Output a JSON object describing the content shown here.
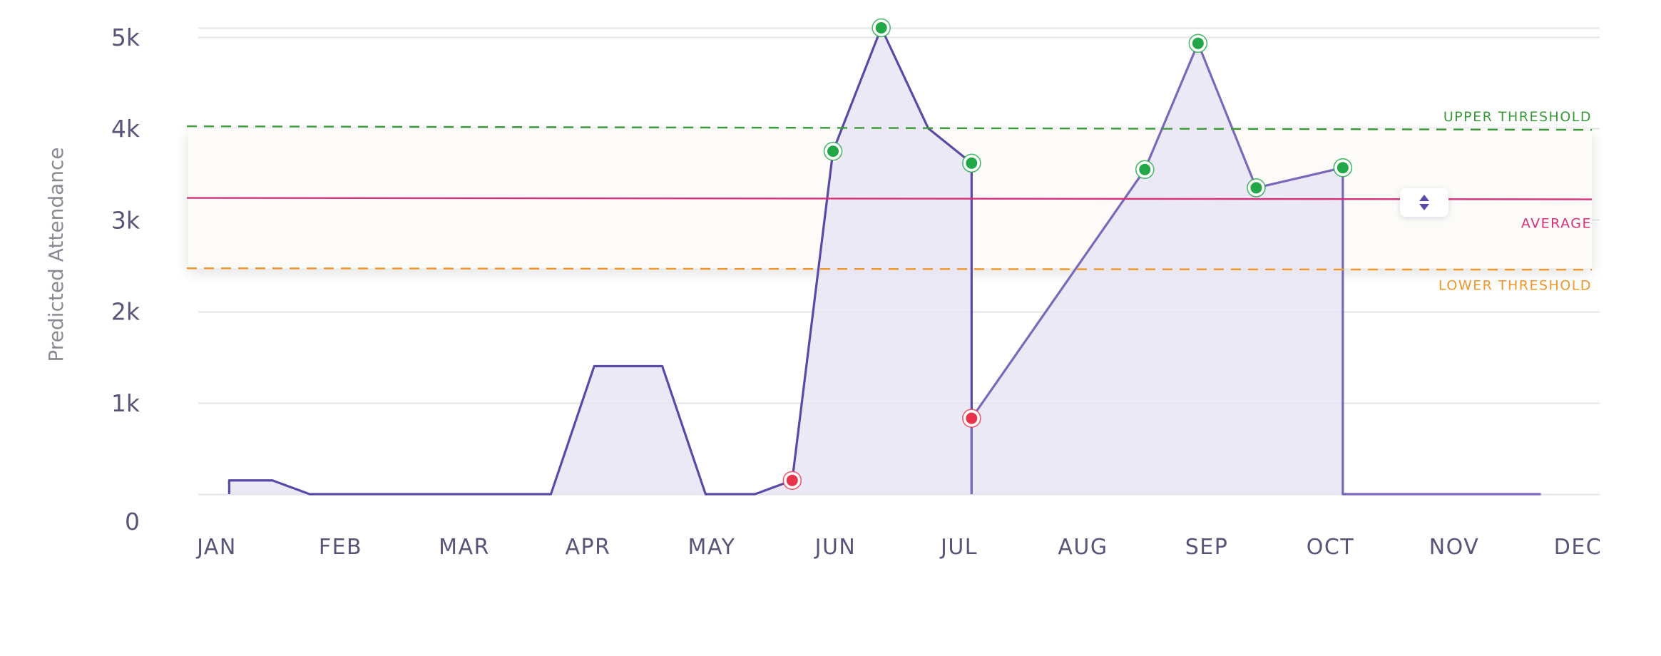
{
  "chart_data": {
    "type": "area",
    "ylabel": "Predicted Attendance",
    "xlabel": "",
    "title": "",
    "x_ticks": [
      "JAN",
      "FEB",
      "MAR",
      "APR",
      "MAY",
      "JUN",
      "JUL",
      "AUG",
      "SEP",
      "OCT",
      "NOV",
      "DEC"
    ],
    "y_ticks": [
      {
        "value": 0,
        "label": "0"
      },
      {
        "value": 1000,
        "label": "1k"
      },
      {
        "value": 2000,
        "label": "2k"
      },
      {
        "value": 3000,
        "label": "3k"
      },
      {
        "value": 4000,
        "label": "4k"
      },
      {
        "value": 5000,
        "label": "5k"
      }
    ],
    "ylim": [
      0,
      5100
    ],
    "xlim": [
      1,
      12.65
    ],
    "grid": true,
    "series": [
      {
        "values": [
          [
            1.1,
            0
          ],
          [
            1.1,
            150
          ],
          [
            1.45,
            150
          ],
          [
            1.75,
            0
          ],
          [
            3.7,
            0
          ],
          [
            4.05,
            1400
          ],
          [
            4.6,
            1400
          ],
          [
            4.95,
            0
          ],
          [
            5.35,
            0
          ],
          [
            5.65,
            150
          ],
          [
            5.98,
            3750
          ],
          [
            6.37,
            5100
          ],
          [
            6.75,
            4000
          ],
          [
            7.1,
            3620
          ],
          [
            7.1,
            0
          ]
        ]
      },
      {
        "values": [
          [
            7.1,
            0
          ],
          [
            7.1,
            830
          ],
          [
            8.5,
            3550
          ],
          [
            8.93,
            4930
          ],
          [
            9.4,
            3350
          ],
          [
            10.1,
            3570
          ],
          [
            10.1,
            0
          ],
          [
            11.7,
            0
          ]
        ]
      }
    ],
    "markers": [
      {
        "x": 5.65,
        "y": 150,
        "status": "low"
      },
      {
        "x": 5.98,
        "y": 3750,
        "status": "high"
      },
      {
        "x": 6.37,
        "y": 5100,
        "status": "high"
      },
      {
        "x": 7.1,
        "y": 3620,
        "status": "high"
      },
      {
        "x": 7.1,
        "y": 830,
        "status": "low"
      },
      {
        "x": 8.5,
        "y": 3550,
        "status": "high"
      },
      {
        "x": 8.93,
        "y": 4930,
        "status": "high"
      },
      {
        "x": 9.4,
        "y": 3350,
        "status": "high"
      },
      {
        "x": 10.1,
        "y": 3570,
        "status": "high"
      }
    ],
    "reference_lines": {
      "upper": {
        "label": "UPPER THRESHOLD",
        "value": 4000,
        "color": "#3a9a3a"
      },
      "average": {
        "label": "AVERAGE",
        "value": 3240,
        "color": "#d6307a"
      },
      "lower": {
        "label": "LOWER THRESHOLD",
        "value": 2470,
        "color": "#f0962a"
      }
    },
    "band": {
      "from": 2470,
      "to": 4000
    },
    "colors": {
      "line": "#5c49a6",
      "fill": "#e8e5f5",
      "marker_high": "#22a746",
      "marker_low": "#e8344a"
    }
  },
  "handle": {
    "icon": "sort-arrows-icon"
  }
}
